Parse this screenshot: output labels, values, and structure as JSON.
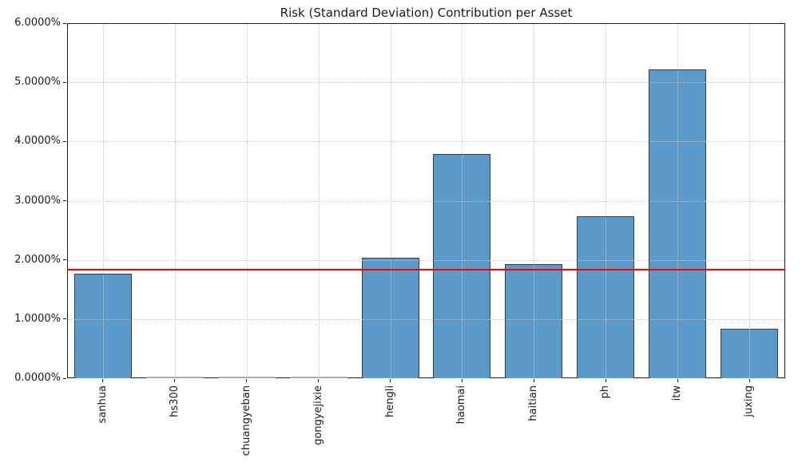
{
  "chart_data": {
    "type": "bar",
    "title": "Risk (Standard Deviation) Contribution per Asset",
    "xlabel": "",
    "ylabel": "",
    "unit": "%",
    "categories": [
      "sanhua",
      "hs300",
      "chuangyeban",
      "gongyejixie",
      "hengli",
      "haomai",
      "haitian",
      "ph",
      "itw",
      "juxing"
    ],
    "values": [
      1.76,
      0.001,
      0.001,
      0.001,
      2.04,
      3.79,
      1.93,
      2.74,
      5.22,
      0.83
    ],
    "ylim": [
      0,
      6
    ],
    "ytick_labels": [
      "0.0000%",
      "1.0000%",
      "2.0000%",
      "3.0000%",
      "4.0000%",
      "5.0000%",
      "6.0000%"
    ],
    "reference_line": {
      "value": 1.83,
      "color": "#ff0000"
    },
    "grid": {
      "style": "dotted",
      "horizontal": true,
      "vertical": true,
      "color": "#c2c2c2",
      "above_bars": true
    },
    "bar_fill_color": "#5c9bc9",
    "bar_edge_color": "#32404d",
    "x_labels_rotation_deg": 90,
    "legend": "none"
  }
}
